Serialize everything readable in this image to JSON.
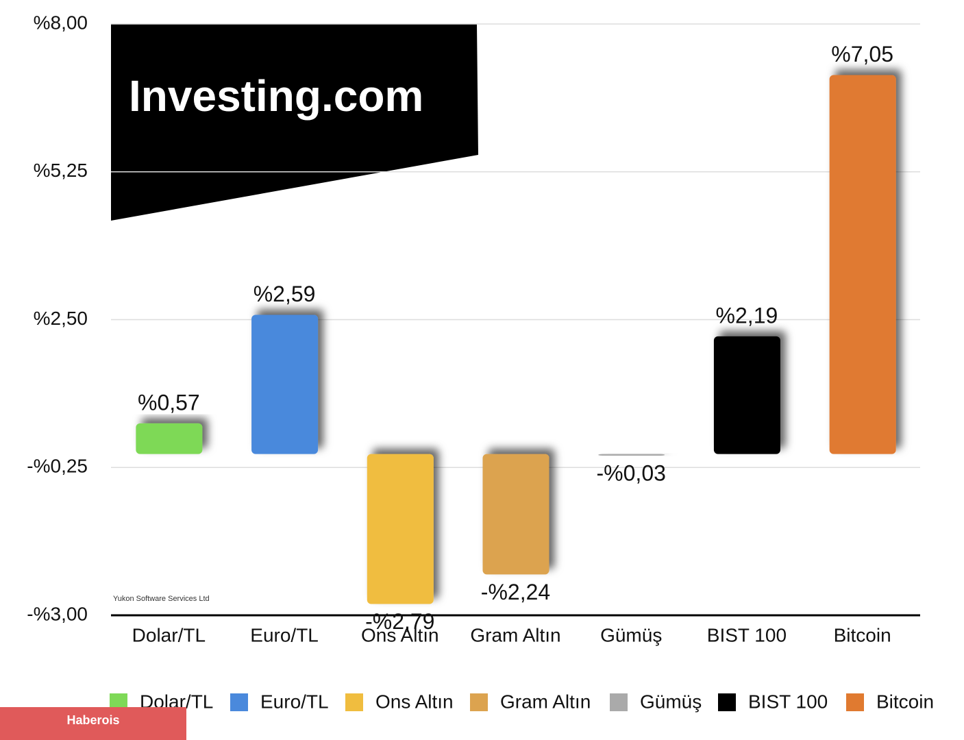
{
  "chart_data": {
    "type": "bar",
    "categories": [
      "Dolar/TL",
      "Euro/TL",
      "Ons Altın",
      "Gram Altın",
      "Gümüş",
      "BIST 100",
      "Bitcoin"
    ],
    "values": [
      0.57,
      2.59,
      -2.79,
      -2.24,
      -0.03,
      2.19,
      7.05
    ],
    "value_labels": [
      "%0,57",
      "%2,59",
      "-%2,79",
      "-%2,24",
      "-%0,03",
      "%2,19",
      "%7,05"
    ],
    "colors": [
      "#7ed957",
      "#4a89dc",
      "#f0bd3f",
      "#dca34f",
      "#aaaaaa",
      "#000000",
      "#e07a30"
    ],
    "ylim": [
      -3,
      8
    ],
    "yticks": [
      {
        "value": -3,
        "label": "-%3,00"
      },
      {
        "value": -0.25,
        "label": "-%0,25"
      },
      {
        "value": 2.5,
        "label": "%2,50"
      },
      {
        "value": 5.25,
        "label": "%5,25"
      },
      {
        "value": 8,
        "label": "%8,00"
      }
    ],
    "grid": true,
    "legend": "bottom",
    "watermark": "Investing.com",
    "credit": "Yukon Software Services Ltd",
    "source": "Haberois"
  }
}
